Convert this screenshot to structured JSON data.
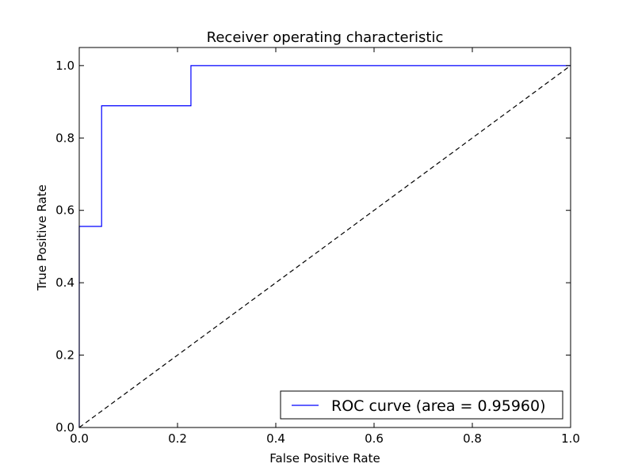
{
  "chart_data": {
    "type": "line",
    "title": "Receiver operating characteristic",
    "xlabel": "False Positive Rate",
    "ylabel": "True Positive Rate",
    "xlim": [
      0.0,
      1.0
    ],
    "ylim": [
      0.0,
      1.05
    ],
    "xticks": [
      "0.0",
      "0.2",
      "0.4",
      "0.6",
      "0.8",
      "1.0"
    ],
    "yticks": [
      "0.0",
      "0.2",
      "0.4",
      "0.6",
      "0.8",
      "1.0"
    ],
    "grid": false,
    "legend_position": "lower-right",
    "series": [
      {
        "name": "ROC curve (area = 0.95960)",
        "color": "#0000ff",
        "style": "solid",
        "x": [
          0.0,
          0.0,
          0.0455,
          0.0455,
          0.2273,
          0.2273,
          1.0
        ],
        "y": [
          0.0,
          0.5556,
          0.5556,
          0.8889,
          0.8889,
          1.0,
          1.0
        ]
      },
      {
        "color": "#000000",
        "style": "dashed",
        "x": [
          0.0,
          1.0
        ],
        "y": [
          0.0,
          1.0
        ]
      }
    ]
  }
}
